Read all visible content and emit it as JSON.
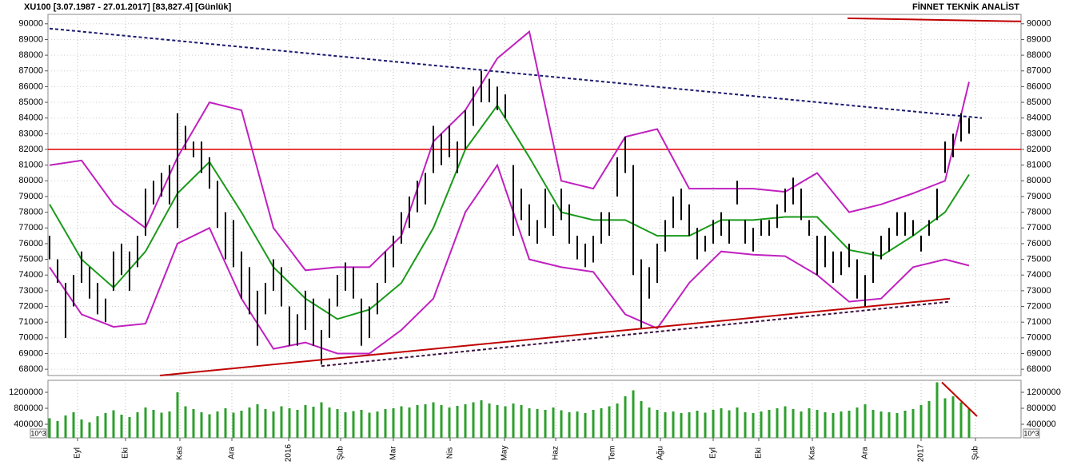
{
  "chart_data": [
    {
      "type": "hilo",
      "title": "XU100  [3.07.1987 - 27.01.2017]  [83,827.4]  [Günlük]",
      "header_right": "FİNNET TEKNİK ANALİST",
      "color": "#000000",
      "tick_label_color": "#2a8a2a",
      "ylim": [
        67600,
        90600
      ],
      "xlim": [
        -0.2,
        121.5
      ],
      "yticks": [
        68000,
        69000,
        70000,
        71000,
        72000,
        73000,
        74000,
        75000,
        76000,
        77000,
        78000,
        79000,
        80000,
        81000,
        82000,
        83000,
        84000,
        85000,
        86000,
        87000,
        88000,
        89000,
        90000
      ],
      "grid": true,
      "high": [
        76500,
        75000,
        73500,
        74000,
        75500,
        74500,
        73500,
        72500,
        75500,
        76000,
        75500,
        76500,
        79500,
        80000,
        80500,
        81000,
        84300,
        83500,
        82500,
        82500,
        81500,
        80000,
        78000,
        77500,
        75500,
        74500,
        73000,
        73500,
        75000,
        74500,
        72000,
        71500,
        73000,
        72500,
        70500,
        72500,
        74000,
        74800,
        74500,
        72500,
        72000,
        73500,
        75500,
        76500,
        78000,
        79000,
        80000,
        80500,
        83500,
        83000,
        83500,
        82500,
        84500,
        86000,
        87000,
        86500,
        86000,
        85500,
        81000,
        79500,
        78500,
        77500,
        79500,
        78500,
        79500,
        78500,
        76500,
        76000,
        76500,
        78000,
        78000,
        81500,
        82800,
        81000,
        75000,
        74500,
        76000,
        77500,
        79000,
        79500,
        78500,
        77000,
        76500,
        77500,
        78000,
        77500,
        80000,
        77500,
        77000,
        77500,
        77500,
        78500,
        79500,
        80200,
        79500,
        77500,
        76500,
        76500,
        75500,
        75500,
        76000,
        75000,
        74000,
        75500,
        76500,
        77000,
        78000,
        78000,
        77500,
        76500,
        77500,
        79500,
        82500,
        83000,
        84300,
        84000
      ],
      "low": [
        75000,
        73500,
        70000,
        72000,
        73500,
        72500,
        71500,
        71000,
        73000,
        74000,
        73000,
        74500,
        76500,
        78500,
        79000,
        78500,
        77000,
        82000,
        81500,
        80500,
        79500,
        77000,
        75000,
        74500,
        72500,
        71500,
        69500,
        71500,
        73000,
        72000,
        69500,
        69500,
        70500,
        69500,
        68300,
        70000,
        72000,
        73000,
        72500,
        69500,
        70000,
        71500,
        73500,
        74500,
        76000,
        77000,
        78000,
        78500,
        80500,
        81000,
        81500,
        80500,
        82000,
        83500,
        85000,
        85000,
        84500,
        84000,
        76500,
        77500,
        76500,
        76000,
        77000,
        76500,
        77500,
        76000,
        75000,
        74500,
        74800,
        76000,
        76500,
        79000,
        80500,
        74000,
        70600,
        72500,
        73500,
        75500,
        77000,
        77500,
        76500,
        75000,
        75500,
        76000,
        76500,
        76000,
        78500,
        76000,
        75500,
        76500,
        76500,
        77000,
        78000,
        78500,
        77500,
        76500,
        74000,
        74500,
        73500,
        74000,
        74500,
        72500,
        72000,
        73500,
        75000,
        75500,
        76500,
        76500,
        76500,
        75500,
        76500,
        77500,
        80500,
        81500,
        82500,
        83000
      ],
      "overlays": [
        {
          "color": "#1a9a1a",
          "x": [
            0,
            4,
            8,
            12,
            16,
            20,
            24,
            28,
            32,
            36,
            40,
            44,
            48,
            52,
            56,
            60,
            64,
            68,
            72,
            76,
            80,
            84,
            88,
            92,
            96,
            100,
            104,
            108,
            112,
            115
          ],
          "values": [
            78500,
            75000,
            73200,
            75500,
            79200,
            81200,
            78000,
            74500,
            72500,
            71200,
            71800,
            73500,
            77000,
            82000,
            84800,
            81500,
            78000,
            77500,
            77500,
            76500,
            76500,
            77500,
            77500,
            77700,
            77700,
            75600,
            75200,
            76500,
            78000,
            80400
          ]
        },
        {
          "color": "#c020c0",
          "x": [
            0,
            4,
            8,
            12,
            16,
            20,
            24,
            28,
            32,
            36,
            40,
            44,
            48,
            52,
            56,
            60,
            64,
            68,
            72,
            76,
            80,
            84,
            88,
            92,
            96,
            100,
            104,
            108,
            112,
            115
          ],
          "values": [
            81000,
            81300,
            78500,
            77000,
            81500,
            85000,
            84500,
            77000,
            74300,
            74500,
            74500,
            76500,
            82500,
            84500,
            87800,
            89500,
            80000,
            79500,
            82800,
            83300,
            79500,
            79500,
            79500,
            79300,
            80500,
            78000,
            78500,
            79200,
            80000,
            86300
          ]
        },
        {
          "color": "#c020c0",
          "x": [
            0,
            4,
            8,
            12,
            16,
            20,
            24,
            28,
            32,
            36,
            40,
            44,
            48,
            52,
            56,
            60,
            64,
            68,
            72,
            76,
            80,
            84,
            88,
            92,
            96,
            100,
            104,
            108,
            112,
            115
          ],
          "values": [
            74500,
            71500,
            70700,
            70900,
            76000,
            77000,
            72500,
            69300,
            69700,
            69000,
            69000,
            70500,
            72500,
            78000,
            81000,
            75000,
            74500,
            74200,
            71500,
            70600,
            73500,
            75500,
            75300,
            75200,
            74000,
            72300,
            72500,
            74500,
            75000,
            74600
          ]
        }
      ],
      "hlines": [
        {
          "value": 82000,
          "color": "#e00000"
        }
      ],
      "trendlines": [
        {
          "color": "#1a1a6e",
          "dash": true,
          "x": [
            0,
            116.6
          ],
          "values": [
            89700,
            84000
          ]
        },
        {
          "color": "#c00000",
          "dash": false,
          "x": [
            13.8,
            112.6
          ],
          "values": [
            67600,
            72500
          ]
        },
        {
          "color": "#3a1040",
          "dash": true,
          "x": [
            34,
            112.6
          ],
          "values": [
            68200,
            72300
          ]
        },
        {
          "color": "#c00000",
          "dash": false,
          "x": [
            99.8,
            121.5
          ],
          "values": [
            90350,
            90150
          ]
        }
      ]
    },
    {
      "type": "bar",
      "color": "#2ca02c",
      "unit_label": "10^3",
      "ylim": [
        60000,
        1500000
      ],
      "xlim": [
        -0.2,
        121.5
      ],
      "yticks": [
        400000,
        800000,
        1200000
      ],
      "xticks": [
        {
          "value": 3.5,
          "label": "Eyl"
        },
        {
          "value": 9.5,
          "label": "Eki"
        },
        {
          "value": 16.3,
          "label": "Kas"
        },
        {
          "value": 22.8,
          "label": "Ara"
        },
        {
          "value": 29.9,
          "label": "2016"
        },
        {
          "value": 36.4,
          "label": "Şub"
        },
        {
          "value": 43,
          "label": "Mar"
        },
        {
          "value": 50.1,
          "label": "Nis"
        },
        {
          "value": 56.9,
          "label": "May"
        },
        {
          "value": 63.3,
          "label": "Haz"
        },
        {
          "value": 70.4,
          "label": "Tem"
        },
        {
          "value": 76.4,
          "label": "Ağu"
        },
        {
          "value": 83,
          "label": "Eyl"
        },
        {
          "value": 88.7,
          "label": "Eki"
        },
        {
          "value": 95.4,
          "label": "Kas"
        },
        {
          "value": 102,
          "label": "Ara"
        },
        {
          "value": 109,
          "label": "2017"
        },
        {
          "value": 115.8,
          "label": "Şub"
        }
      ],
      "values": [
        550000,
        480000,
        620000,
        700000,
        520000,
        450000,
        600000,
        680000,
        750000,
        640000,
        580000,
        700000,
        820000,
        760000,
        690000,
        720000,
        1200000,
        850000,
        780000,
        700000,
        650000,
        720000,
        800000,
        690000,
        740000,
        820000,
        900000,
        780000,
        720000,
        850000,
        800000,
        760000,
        880000,
        840000,
        950000,
        820000,
        780000,
        700000,
        730000,
        760000,
        690000,
        720000,
        780000,
        800000,
        850000,
        820000,
        880000,
        900000,
        950000,
        880000,
        820000,
        860000,
        900000,
        950000,
        1000000,
        920000,
        880000,
        850000,
        920000,
        880000,
        800000,
        780000,
        760000,
        820000,
        750000,
        700000,
        720000,
        680000,
        760000,
        800000,
        850000,
        920000,
        1100000,
        1250000,
        980000,
        820000,
        760000,
        700000,
        720000,
        680000,
        700000,
        740000,
        690000,
        760000,
        800000,
        750000,
        820000,
        700000,
        680000,
        720000,
        760000,
        800000,
        850000,
        780000,
        720000,
        800000,
        760000,
        700000,
        680000,
        720000,
        740000,
        820000,
        900000,
        760000,
        720000,
        700000,
        680000,
        740000,
        780000,
        880000,
        980000,
        1450000,
        1050000,
        1100000,
        950000,
        800000
      ],
      "trendlines": [
        {
          "color": "#c00000",
          "dash": false,
          "x": [
            111.6,
            116
          ],
          "values": [
            1450000,
            600000
          ]
        }
      ]
    }
  ]
}
